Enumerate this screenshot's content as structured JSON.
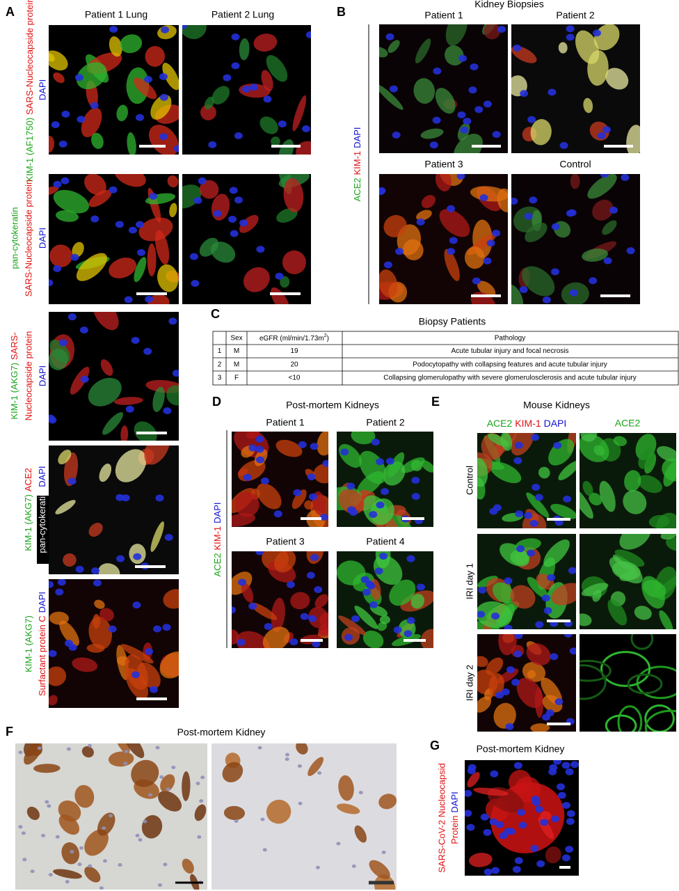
{
  "figure": {
    "A": {
      "label": "A",
      "columns": [
        "Patient 1 Lung",
        "Patient 2 Lung"
      ],
      "stains": [
        [
          "KIM-1 (AF1750)",
          "SARS-Nucleocapside protein",
          "DAPI"
        ],
        [
          "pan-cytokeratin",
          "SARS-Nucleocapside protein",
          "DAPI"
        ],
        [
          "KIM-1 (AKG7)",
          "SARS-",
          "Nucleocapside protein",
          "DAPI"
        ],
        [
          "KIM-1 (AKG7)",
          "ACE2",
          "pan-cytokeratin",
          "DAPI"
        ],
        [
          "KIM-1 (AKG7)",
          "Surfactant protein C",
          "DAPI"
        ]
      ]
    },
    "B": {
      "label": "B",
      "title": "Kidney Biopsies",
      "panels": [
        "Patient 1",
        "Patient 2",
        "Patient 3",
        "Control"
      ],
      "stains": [
        "ACE2",
        "KIM-1",
        "DAPI"
      ]
    },
    "C": {
      "label": "C",
      "title": "Biopsy Patients",
      "header": {
        "sex": "Sex",
        "egfr": "eGFR (ml/min/1.73m",
        "egfr_sup": "2",
        "egfr_end": ")",
        "pathology": "Pathology"
      },
      "rows": [
        [
          1,
          "M",
          19,
          "Acute tubular injury and focal necrosis"
        ],
        [
          2,
          "M",
          20,
          "Podocytopathy with collapsing features and acute tubular injury"
        ],
        [
          3,
          "F",
          "<10",
          "Collapsing glomerulopathy with severe glomerulosclerosis and acute tubular injury"
        ]
      ]
    },
    "D": {
      "label": "D",
      "title": "Post-mortem Kidneys",
      "panels": [
        "Patient 1",
        "Patient 2",
        "Patient 3",
        "Patient 4"
      ],
      "stains": [
        "ACE2",
        "KIM-1",
        "DAPI"
      ]
    },
    "E": {
      "label": "E",
      "title": "Mouse Kidneys",
      "columns": [
        [
          "ACE2",
          "KIM-1",
          "DAPI"
        ],
        [
          "ACE2"
        ]
      ],
      "rows": [
        "Control",
        "IRI day 1",
        "IRI day 2"
      ]
    },
    "F": {
      "label": "F",
      "title": "Post-mortem Kidney"
    },
    "G": {
      "label": "G",
      "title": "Post-mortem Kidney",
      "stains": [
        "SARS-CoV-2 Nucleocapsid",
        "Protein",
        "DAPI"
      ]
    }
  }
}
